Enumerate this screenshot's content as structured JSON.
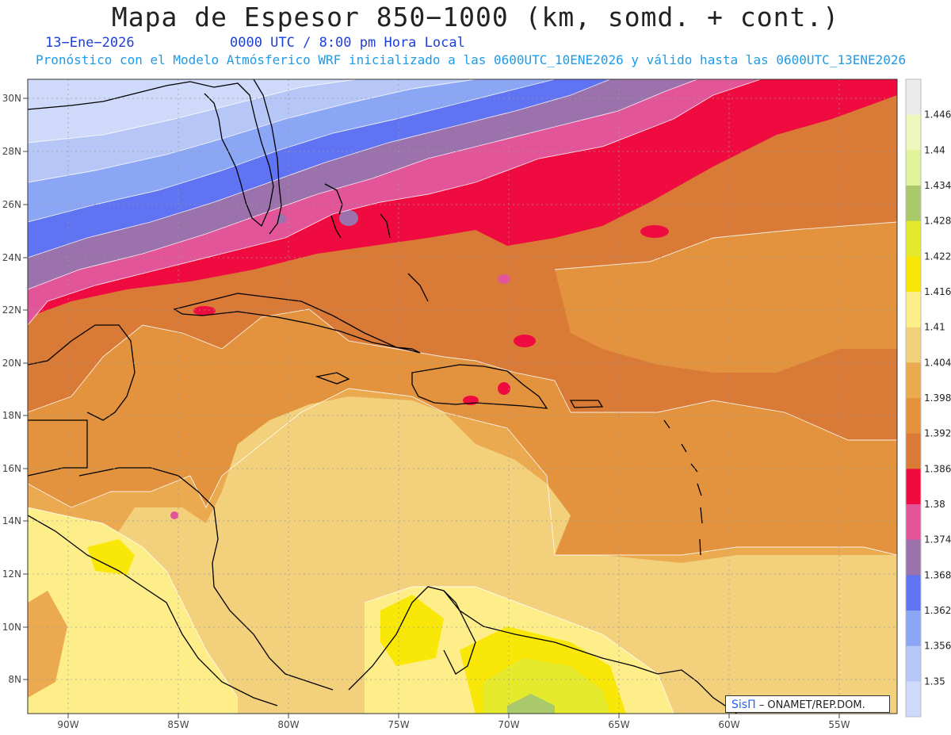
{
  "header": {
    "title": "Mapa de Espesor 850−1000 (km, somd. + cont.)",
    "date": "13−Ene−2026",
    "valid_time": "0000 UTC / 8:00 pm Hora Local",
    "forecast_note": "Pronóstico con el Modelo Atmósferico WRF inicializado a las 0600UTC_10ENE2026 y válido hasta las  0600UTC_13ENE2026"
  },
  "map": {
    "region": "Caribbean / Gulf of Mexico / Western Atlantic",
    "lat_labels": [
      "30N",
      "28N",
      "26N",
      "24N",
      "22N",
      "20N",
      "18N",
      "16N",
      "14N",
      "12N",
      "10N",
      "8N"
    ],
    "lon_labels": [
      "90W",
      "85W",
      "80W",
      "75W",
      "70W",
      "65W",
      "60W",
      "55W"
    ],
    "grid": true,
    "coastline_color": "#000000"
  },
  "colorbar": {
    "labels": [
      "1.446",
      "1.44",
      "1.434",
      "1.428",
      "1.422",
      "1.416",
      "1.41",
      "1.404",
      "1.398",
      "1.392",
      "1.386",
      "1.38",
      "1.374",
      "1.368",
      "1.362",
      "1.356",
      "1.35"
    ],
    "colors": [
      "#ebebeb",
      "#eef7bc",
      "#e1f39a",
      "#a9c96a",
      "#e6ea2c",
      "#f9e807",
      "#fdee8a",
      "#f2d07c",
      "#ebaa50",
      "#e3933e",
      "#d97a36",
      "#ef0a40",
      "#e35599",
      "#9c72ac",
      "#5f73f3",
      "#8aa6f5",
      "#b6c7f7",
      "#cfd9fa"
    ]
  },
  "credit": {
    "brand": "SisΠ",
    "org": "– ONAMET/REP.DOM."
  }
}
